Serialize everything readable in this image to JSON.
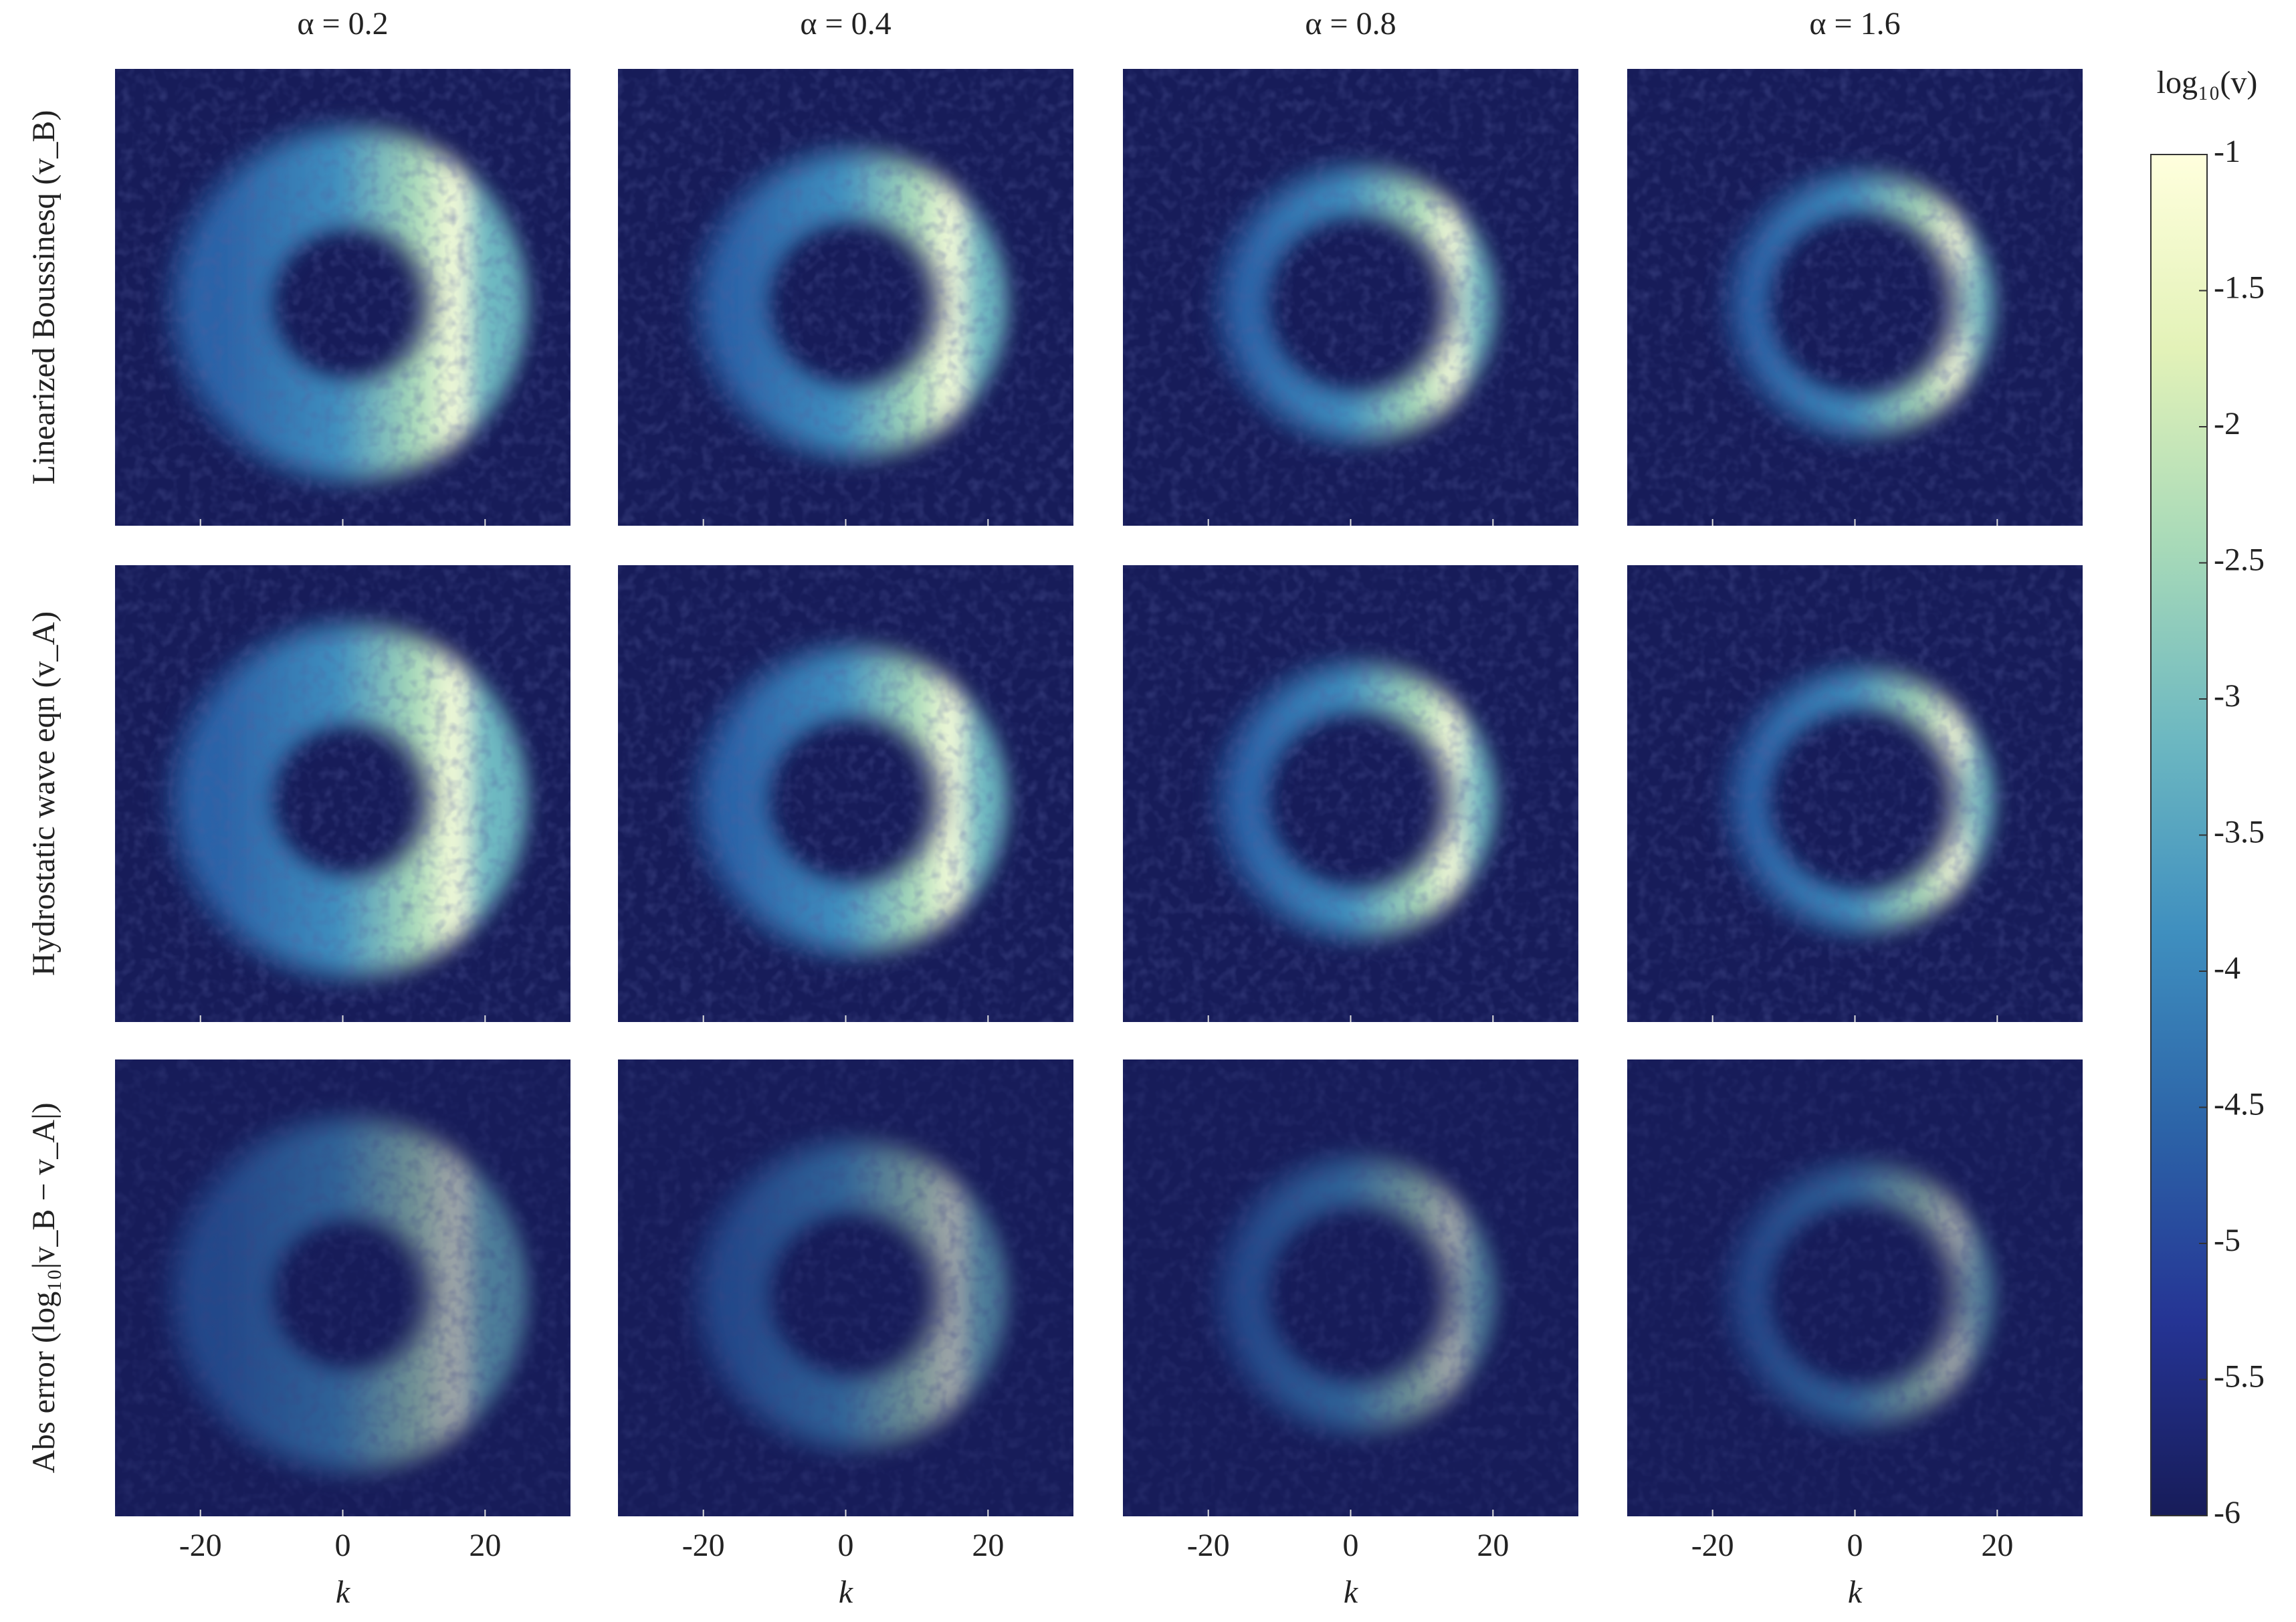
{
  "chart_data": {
    "type": "heatmap-grid",
    "column_titles": [
      "α = 0.2",
      "α = 0.4",
      "α = 0.8",
      "α = 1.6"
    ],
    "row_titles": [
      "Linearized Boussinesq (v_B)",
      "Hydrostatic wave eqn (v_A)",
      "Abs error (log₁₀|v_B − v_A|)"
    ],
    "xlabel": "k",
    "xlim": [
      -32,
      32
    ],
    "xticks": [
      -20,
      0,
      20
    ],
    "colorbar": {
      "label": "log₁₀(v)",
      "lim": [
        -6,
        -1
      ],
      "ticks": [
        -1,
        -1.5,
        -2,
        -2.5,
        -3,
        -3.5,
        -4,
        -4.5,
        -5,
        -5.5,
        -6
      ],
      "colormap": [
        "#171c59",
        "#253494",
        "#2c64a8",
        "#3f8fbf",
        "#6db8c1",
        "#a8dab8",
        "#e3f2b8",
        "#ffffdd"
      ]
    }
  }
}
